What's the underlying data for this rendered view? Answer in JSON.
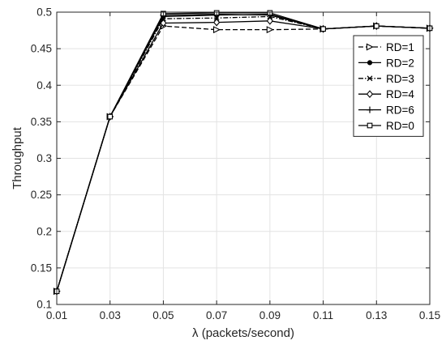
{
  "chart_data": {
    "type": "line",
    "title": "",
    "xlabel": "λ (packets/second)",
    "ylabel": "Throughput",
    "x": [
      0.01,
      0.03,
      0.05,
      0.07,
      0.09,
      0.11,
      0.13,
      0.15
    ],
    "x_tick_labels": [
      "0.01",
      "0.03",
      "0.05",
      "0.07",
      "0.09",
      "0.11",
      "0.13",
      "0.15"
    ],
    "y_tick_values": [
      0.1,
      0.15,
      0.2,
      0.25,
      0.3,
      0.35,
      0.4,
      0.45,
      0.5
    ],
    "y_tick_labels": [
      "0.1",
      "0.15",
      "0.2",
      "0.25",
      "0.3",
      "0.35",
      "0.4",
      "0.45",
      "0.5"
    ],
    "xlim": [
      0.01,
      0.15
    ],
    "ylim": [
      0.1,
      0.5
    ],
    "grid": true,
    "legend_position": "upper-right",
    "series": [
      {
        "name": "RD=1",
        "marker": "triangle-right",
        "dash": "dashed",
        "values": [
          0.118,
          0.357,
          0.481,
          0.476,
          0.476,
          0.477,
          0.481,
          0.478
        ]
      },
      {
        "name": "RD=2",
        "marker": "dot",
        "dash": "solid",
        "values": [
          0.118,
          0.357,
          0.494,
          0.496,
          0.497,
          0.477,
          0.481,
          0.478
        ]
      },
      {
        "name": "RD=3",
        "marker": "x",
        "dash": "dashdot",
        "values": [
          0.118,
          0.357,
          0.491,
          0.492,
          0.494,
          0.477,
          0.481,
          0.478
        ]
      },
      {
        "name": "RD=4",
        "marker": "diamond",
        "dash": "solid",
        "values": [
          0.118,
          0.357,
          0.485,
          0.486,
          0.488,
          0.477,
          0.481,
          0.478
        ]
      },
      {
        "name": "RD=6",
        "marker": "plus",
        "dash": "solid",
        "values": [
          0.118,
          0.357,
          0.496,
          0.497,
          0.496,
          0.477,
          0.481,
          0.478
        ]
      },
      {
        "name": "RD=0",
        "marker": "square",
        "dash": "solid",
        "values": [
          0.118,
          0.357,
          0.498,
          0.499,
          0.499,
          0.477,
          0.481,
          0.478
        ]
      }
    ]
  }
}
